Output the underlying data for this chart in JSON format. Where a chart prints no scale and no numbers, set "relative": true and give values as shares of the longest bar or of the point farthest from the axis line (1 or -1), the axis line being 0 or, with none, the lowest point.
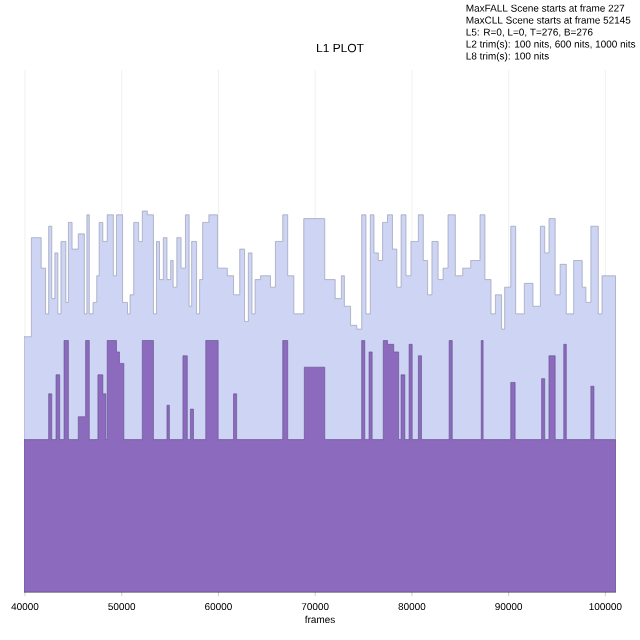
{
  "chart_data": {
    "type": "area",
    "title": "L1 PLOT",
    "xlabel": "frames",
    "relative": true,
    "grid": "x",
    "xlim": [
      39900,
      101100
    ],
    "xticks": [
      40000,
      50000,
      60000,
      70000,
      80000,
      90000,
      100000
    ],
    "annotations": [
      "MaxFALL Scene starts at frame 227",
      "MaxCLL Scene starts at frame 52145",
      "L5: R=0, L=0, T=276, B=276",
      "L2 trim(s): 100 nits, 600 nits, 1000 nits",
      "L8 trim(s): 100 nits"
    ],
    "series": [
      {
        "color": "#cdd4f4",
        "x": [
          39900,
          40660,
          41680,
          42130,
          42450,
          42770,
          43090,
          43400,
          43720,
          44230,
          44490,
          44870,
          45510,
          46140,
          46400,
          46650,
          47030,
          47420,
          47670,
          48050,
          48500,
          49140,
          49460,
          50090,
          50600,
          50860,
          51240,
          51750,
          52130,
          52640,
          53280,
          53600,
          53910,
          54300,
          54680,
          55060,
          55320,
          55700,
          56140,
          56590,
          56970,
          57230,
          57740,
          58050,
          58370,
          59010,
          59900,
          60920,
          61560,
          62200,
          62700,
          63090,
          63470,
          63790,
          64360,
          65380,
          65890,
          66650,
          67160,
          67800,
          68820,
          70990,
          72070,
          72710,
          73020,
          73660,
          74300,
          74810,
          75250,
          75700,
          76080,
          76530,
          76970,
          77480,
          77990,
          78440,
          78880,
          79390,
          79900,
          80670,
          81180,
          81620,
          82070,
          82710,
          83220,
          83730,
          84490,
          85250,
          86080,
          87040,
          87550,
          88180,
          88630,
          89270,
          89590,
          90220,
          90730,
          91620,
          92520,
          93280,
          93730,
          94170,
          94810,
          95320,
          95960,
          96720,
          97610,
          97990,
          98500,
          99270,
          99650,
          100730,
          101050
        ],
        "values": [
          0.67,
          0.93,
          0.85,
          0.73,
          0.96,
          0.77,
          0.89,
          0.73,
          0.92,
          0.76,
          0.97,
          0.9,
          0.94,
          0.73,
          0.99,
          0.73,
          0.76,
          0.83,
          0.97,
          0.92,
          0.99,
          0.83,
          0.99,
          0.76,
          0.73,
          0.78,
          0.97,
          0.92,
          1.0,
          0.99,
          0.73,
          0.92,
          0.82,
          0.93,
          0.82,
          0.87,
          0.8,
          0.93,
          0.85,
          0.99,
          0.75,
          0.92,
          0.73,
          0.82,
          0.97,
          0.99,
          0.85,
          0.83,
          0.78,
          0.9,
          0.71,
          0.89,
          0.73,
          0.82,
          0.83,
          0.8,
          0.92,
          0.99,
          0.83,
          0.73,
          0.98,
          0.82,
          0.77,
          0.83,
          0.75,
          0.7,
          0.69,
          0.99,
          0.73,
          0.99,
          0.89,
          0.87,
          0.97,
          0.99,
          0.9,
          0.8,
          0.99,
          0.83,
          0.92,
          0.99,
          0.87,
          0.78,
          0.92,
          0.82,
          0.85,
          0.99,
          0.83,
          0.85,
          0.87,
          0.99,
          0.82,
          0.73,
          0.78,
          0.69,
          0.8,
          0.96,
          0.73,
          0.81,
          0.75,
          0.96,
          0.89,
          0.98,
          0.78,
          0.86,
          0.73,
          0.87,
          0.8,
          0.76,
          0.96,
          0.73,
          0.83,
          0.83,
          0.83
        ]
      },
      {
        "color": "#8c6bbf",
        "x": [
          39900,
          42450,
          42770,
          43210,
          43590,
          44040,
          44490,
          45510,
          46270,
          46650,
          47540,
          48050,
          48370,
          48500,
          49460,
          49770,
          50220,
          52130,
          53280,
          54680,
          54930,
          56330,
          56780,
          57100,
          57420,
          58690,
          59970,
          61560,
          61880,
          66650,
          67160,
          68880,
          70990,
          74810,
          75130,
          75570,
          75890,
          77040,
          77480,
          78120,
          78630,
          78880,
          79270,
          79710,
          80030,
          80670,
          80990,
          83850,
          84170,
          87170,
          87360,
          90220,
          90670,
          93410,
          93730,
          94170,
          94810,
          95700,
          95960,
          98500,
          98820,
          101050
        ],
        "values": [
          0.4,
          0.52,
          0.4,
          0.57,
          0.4,
          0.66,
          0.4,
          0.46,
          0.66,
          0.4,
          0.57,
          0.52,
          0.4,
          0.66,
          0.63,
          0.6,
          0.4,
          0.66,
          0.4,
          0.49,
          0.4,
          0.62,
          0.4,
          0.48,
          0.4,
          0.66,
          0.4,
          0.52,
          0.4,
          0.66,
          0.4,
          0.59,
          0.4,
          0.66,
          0.4,
          0.63,
          0.4,
          0.66,
          0.65,
          0.63,
          0.4,
          0.57,
          0.4,
          0.65,
          0.4,
          0.62,
          0.4,
          0.66,
          0.4,
          0.66,
          0.4,
          0.55,
          0.4,
          0.56,
          0.4,
          0.62,
          0.4,
          0.65,
          0.4,
          0.54,
          0.4,
          0.4
        ]
      }
    ]
  }
}
